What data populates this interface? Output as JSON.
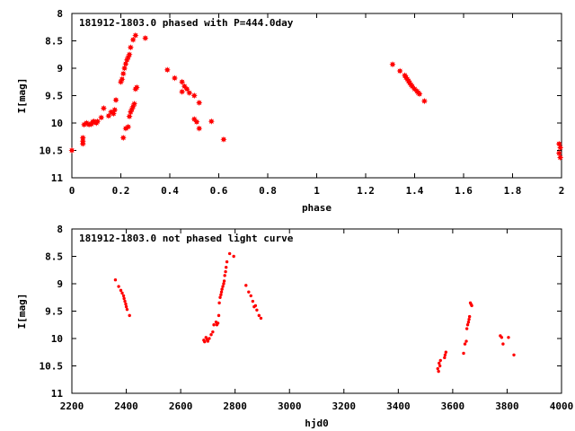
{
  "colors": {
    "points": "#ff0000",
    "axes": "#000000",
    "background": "#ffffff"
  },
  "chart_data": [
    {
      "type": "scatter",
      "title": "181912-1803.0 phased with P=444.0day",
      "xlabel": "phase",
      "ylabel": "I[mag]",
      "xlim": [
        0,
        2
      ],
      "ylim": [
        8,
        11
      ],
      "y_inverted": true,
      "grid": false,
      "marker": "filled-star",
      "x_ticks": [
        "0",
        "0.2",
        "0.4",
        "0.6",
        "0.8",
        "1",
        "1.2",
        "1.4",
        "1.6",
        "1.8",
        "2"
      ],
      "y_ticks": [
        "8",
        "8.5",
        "9",
        "9.5",
        "10",
        "10.5",
        "11"
      ],
      "series": [
        {
          "points": [
            [
              0.0,
              10.5
            ],
            [
              0.045,
              10.27
            ],
            [
              0.045,
              10.33
            ],
            [
              0.045,
              10.38
            ],
            [
              0.05,
              10.03
            ],
            [
              0.06,
              10.0
            ],
            [
              0.07,
              10.03
            ],
            [
              0.08,
              10.02
            ],
            [
              0.085,
              9.98
            ],
            [
              0.09,
              9.97
            ],
            [
              0.1,
              10.0
            ],
            [
              0.105,
              9.97
            ],
            [
              0.12,
              9.9
            ],
            [
              0.13,
              9.73
            ],
            [
              0.15,
              9.87
            ],
            [
              0.16,
              9.8
            ],
            [
              0.17,
              9.83
            ],
            [
              0.175,
              9.76
            ],
            [
              0.18,
              9.58
            ],
            [
              0.2,
              9.25
            ],
            [
              0.205,
              9.2
            ],
            [
              0.21,
              9.1
            ],
            [
              0.215,
              9.0
            ],
            [
              0.22,
              8.92
            ],
            [
              0.225,
              8.85
            ],
            [
              0.23,
              8.8
            ],
            [
              0.235,
              8.75
            ],
            [
              0.24,
              8.62
            ],
            [
              0.25,
              8.48
            ],
            [
              0.21,
              10.27
            ],
            [
              0.22,
              10.1
            ],
            [
              0.23,
              10.07
            ],
            [
              0.235,
              9.88
            ],
            [
              0.24,
              9.8
            ],
            [
              0.245,
              9.75
            ],
            [
              0.25,
              9.7
            ],
            [
              0.255,
              9.65
            ],
            [
              0.26,
              9.38
            ],
            [
              0.265,
              9.35
            ],
            [
              0.26,
              8.4
            ],
            [
              0.3,
              8.45
            ],
            [
              0.39,
              9.03
            ],
            [
              0.42,
              9.18
            ],
            [
              0.45,
              9.25
            ],
            [
              0.46,
              9.33
            ],
            [
              0.45,
              9.43
            ],
            [
              0.47,
              9.38
            ],
            [
              0.48,
              9.45
            ],
            [
              0.5,
              9.5
            ],
            [
              0.5,
              9.93
            ],
            [
              0.51,
              9.98
            ],
            [
              0.52,
              10.1
            ],
            [
              0.52,
              9.63
            ],
            [
              0.57,
              9.97
            ],
            [
              0.62,
              10.3
            ],
            [
              1.31,
              8.93
            ],
            [
              1.34,
              9.05
            ],
            [
              1.36,
              9.13
            ],
            [
              1.365,
              9.17
            ],
            [
              1.37,
              9.2
            ],
            [
              1.375,
              9.23
            ],
            [
              1.38,
              9.27
            ],
            [
              1.385,
              9.3
            ],
            [
              1.39,
              9.33
            ],
            [
              1.4,
              9.38
            ],
            [
              1.41,
              9.42
            ],
            [
              1.415,
              9.45
            ],
            [
              1.42,
              9.47
            ],
            [
              1.44,
              9.6
            ],
            [
              1.99,
              10.38
            ],
            [
              1.995,
              10.45
            ],
            [
              1.99,
              10.55
            ],
            [
              1.995,
              10.63
            ]
          ]
        }
      ]
    },
    {
      "type": "scatter",
      "title": "181912-1803.0 not phased light curve",
      "xlabel": "hjd0",
      "ylabel": "I[mag]",
      "xlim": [
        2200,
        4000
      ],
      "ylim": [
        8,
        11
      ],
      "y_inverted": true,
      "grid": false,
      "marker": "small-dot",
      "x_ticks": [
        "2200",
        "2400",
        "2600",
        "2800",
        "3000",
        "3200",
        "3400",
        "3600",
        "3800",
        "4000"
      ],
      "y_ticks": [
        "8",
        "8.5",
        "9",
        "9.5",
        "10",
        "10.5",
        "11"
      ],
      "series": [
        {
          "points": [
            [
              2360,
              8.93
            ],
            [
              2372,
              9.05
            ],
            [
              2380,
              9.12
            ],
            [
              2385,
              9.17
            ],
            [
              2390,
              9.22
            ],
            [
              2392,
              9.27
            ],
            [
              2395,
              9.32
            ],
            [
              2398,
              9.37
            ],
            [
              2400,
              9.42
            ],
            [
              2403,
              9.47
            ],
            [
              2412,
              9.58
            ],
            [
              2685,
              10.03
            ],
            [
              2688,
              10.06
            ],
            [
              2693,
              9.98
            ],
            [
              2697,
              10.02
            ],
            [
              2700,
              10.05
            ],
            [
              2705,
              10.0
            ],
            [
              2712,
              9.93
            ],
            [
              2718,
              9.88
            ],
            [
              2722,
              9.75
            ],
            [
              2730,
              9.7
            ],
            [
              2733,
              9.75
            ],
            [
              2737,
              9.72
            ],
            [
              2740,
              9.58
            ],
            [
              2742,
              9.35
            ],
            [
              2745,
              9.25
            ],
            [
              2748,
              9.2
            ],
            [
              2750,
              9.15
            ],
            [
              2752,
              9.1
            ],
            [
              2755,
              9.05
            ],
            [
              2758,
              9.0
            ],
            [
              2760,
              8.95
            ],
            [
              2762,
              8.85
            ],
            [
              2765,
              8.78
            ],
            [
              2767,
              8.7
            ],
            [
              2770,
              8.6
            ],
            [
              2780,
              8.45
            ],
            [
              2795,
              8.5
            ],
            [
              2840,
              9.03
            ],
            [
              2850,
              9.15
            ],
            [
              2858,
              9.22
            ],
            [
              2865,
              9.32
            ],
            [
              2870,
              9.42
            ],
            [
              2875,
              9.4
            ],
            [
              2880,
              9.48
            ],
            [
              2888,
              9.58
            ],
            [
              2895,
              9.63
            ],
            [
              3545,
              10.55
            ],
            [
              3548,
              10.6
            ],
            [
              3550,
              10.45
            ],
            [
              3553,
              10.5
            ],
            [
              3555,
              10.4
            ],
            [
              3570,
              10.35
            ],
            [
              3572,
              10.3
            ],
            [
              3575,
              10.25
            ],
            [
              3640,
              10.27
            ],
            [
              3645,
              10.1
            ],
            [
              3650,
              10.05
            ],
            [
              3652,
              9.82
            ],
            [
              3655,
              9.75
            ],
            [
              3658,
              9.7
            ],
            [
              3660,
              9.65
            ],
            [
              3662,
              9.6
            ],
            [
              3665,
              9.35
            ],
            [
              3668,
              9.38
            ],
            [
              3670,
              9.4
            ],
            [
              3775,
              9.95
            ],
            [
              3780,
              9.98
            ],
            [
              3785,
              10.1
            ],
            [
              3805,
              9.98
            ],
            [
              3825,
              10.3
            ]
          ]
        }
      ]
    }
  ]
}
